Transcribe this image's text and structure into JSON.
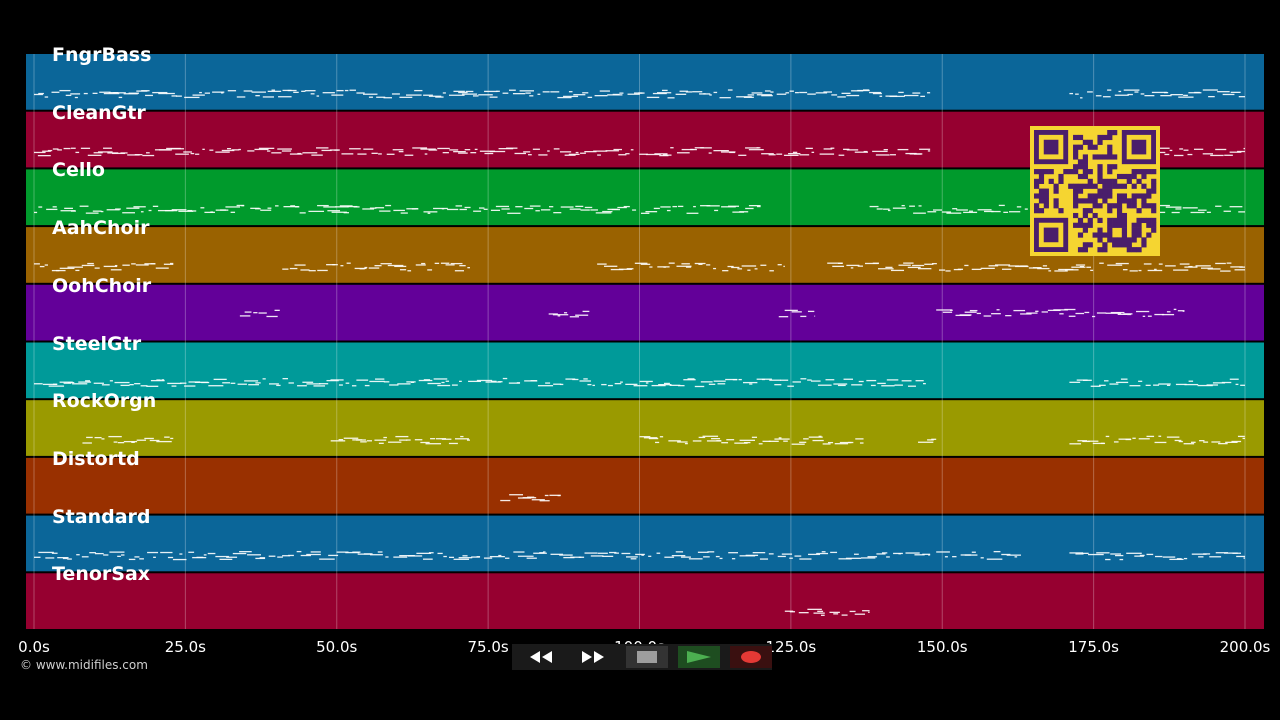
{
  "tracks": [
    {
      "name": "FngrBass",
      "color": "#0b6699"
    },
    {
      "name": "CleanGtr",
      "color": "#960030"
    },
    {
      "name": "Cello",
      "color": "#009a2c"
    },
    {
      "name": "AahChoir",
      "color": "#9a6200"
    },
    {
      "name": "OohChoir",
      "color": "#630099"
    },
    {
      "name": "SteelGtr",
      "color": "#009a99"
    },
    {
      "name": "RockOrgn",
      "color": "#9a9a00"
    },
    {
      "name": "Distortd",
      "color": "#993000"
    },
    {
      "name": "Standard",
      "color": "#0b6699"
    },
    {
      "name": "TenorSax",
      "color": "#960030"
    }
  ],
  "time_axis": {
    "max_seconds": 200,
    "ticks": [
      {
        "t": 0,
        "label": "0.0s"
      },
      {
        "t": 25,
        "label": "25.0s"
      },
      {
        "t": 50,
        "label": "50.0s"
      },
      {
        "t": 75,
        "label": "75.0s"
      },
      {
        "t": 100,
        "label": "100.0s"
      },
      {
        "t": 125,
        "label": "125.0s"
      },
      {
        "t": 150,
        "label": "150.0s"
      },
      {
        "t": 175,
        "label": "175.0s"
      },
      {
        "t": 200,
        "label": "200.0s"
      }
    ]
  },
  "copyright": "© www.midifiles.com",
  "transport": {
    "rewind_icon": "rewind-icon",
    "fast_forward_icon": "fast-forward-icon",
    "stop_icon": "stop-icon",
    "play_icon": "play-icon",
    "record_icon": "record-icon",
    "play_color": "#2e7d32",
    "record_color": "#b71c1c"
  }
}
